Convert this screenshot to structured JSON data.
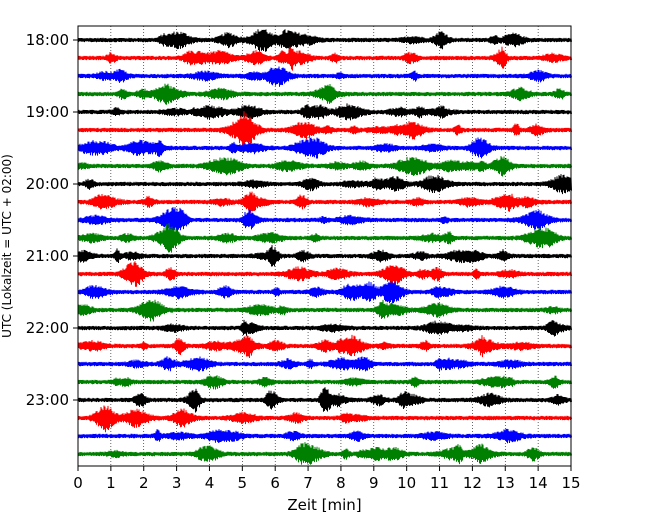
{
  "chart_data": {
    "type": "line",
    "title": "",
    "xlabel": "Zeit  [min]",
    "ylabel": "UTC (Lokalzeit = UTC + 02:00)",
    "xlim": [
      0,
      15
    ],
    "xticks": [
      0,
      1,
      2,
      3,
      4,
      5,
      6,
      7,
      8,
      9,
      10,
      11,
      12,
      13,
      14,
      15
    ],
    "xtick_labels": [
      "0",
      "1",
      "2",
      "3",
      "4",
      "5",
      "6",
      "7",
      "8",
      "9",
      "10",
      "11",
      "12",
      "13",
      "14",
      "15"
    ],
    "yticks": [
      {
        "label": "18:00",
        "row": 0
      },
      {
        "label": "19:00",
        "row": 4
      },
      {
        "label": "20:00",
        "row": 8
      },
      {
        "label": "21:00",
        "row": 12
      },
      {
        "label": "22:00",
        "row": 16
      },
      {
        "label": "23:00",
        "row": 20
      }
    ],
    "grid": {
      "x": true,
      "style": "dotted"
    },
    "color_cycle": [
      "#000000",
      "#ff0000",
      "#0000ff",
      "#008000"
    ],
    "series": [
      {
        "start": "18:00",
        "color": "#000000"
      },
      {
        "start": "18:15",
        "color": "#ff0000"
      },
      {
        "start": "18:30",
        "color": "#0000ff"
      },
      {
        "start": "18:45",
        "color": "#008000"
      },
      {
        "start": "19:00",
        "color": "#000000"
      },
      {
        "start": "19:15",
        "color": "#ff0000"
      },
      {
        "start": "19:30",
        "color": "#0000ff"
      },
      {
        "start": "19:45",
        "color": "#008000"
      },
      {
        "start": "20:00",
        "color": "#000000"
      },
      {
        "start": "20:15",
        "color": "#ff0000"
      },
      {
        "start": "20:30",
        "color": "#0000ff"
      },
      {
        "start": "20:45",
        "color": "#008000"
      },
      {
        "start": "21:00",
        "color": "#000000"
      },
      {
        "start": "21:15",
        "color": "#ff0000"
      },
      {
        "start": "21:30",
        "color": "#0000ff"
      },
      {
        "start": "21:45",
        "color": "#008000"
      },
      {
        "start": "22:00",
        "color": "#000000"
      },
      {
        "start": "22:15",
        "color": "#ff0000"
      },
      {
        "start": "22:30",
        "color": "#0000ff"
      },
      {
        "start": "22:45",
        "color": "#008000"
      },
      {
        "start": "23:00",
        "color": "#000000"
      },
      {
        "start": "23:15",
        "color": "#ff0000"
      },
      {
        "start": "23:30",
        "color": "#0000ff"
      },
      {
        "start": "23:45",
        "color": "#008000"
      }
    ]
  }
}
